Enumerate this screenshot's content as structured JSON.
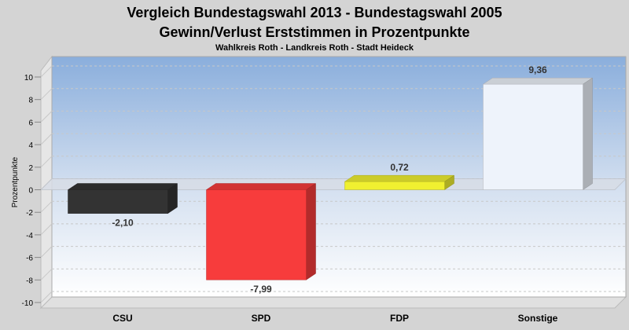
{
  "chart_data": {
    "type": "bar",
    "title": "Vergleich Bundestagswahl 2013  - Bundestagswahl 2005",
    "subtitle": "Gewinn/Verlust Erststimmen in Prozentpunkte",
    "caption": "Wahlkreis Roth - Landkreis Roth - Stadt Heideck",
    "ylabel": "Prozentpunkte",
    "xlabel": "",
    "categories": [
      "CSU",
      "SPD",
      "FDP",
      "Sonstige"
    ],
    "values": [
      -2.1,
      -7.99,
      0.72,
      9.36
    ],
    "value_labels": [
      "-2,10",
      "-7,99",
      "0,72",
      "9,36"
    ],
    "colors": [
      "#333333",
      "#f73c3c",
      "#f0f030",
      "#eef3fb"
    ],
    "ylim": [
      -10,
      10
    ],
    "yticks": [
      -10,
      -8,
      -6,
      -4,
      -2,
      0,
      2,
      4,
      6,
      8,
      10
    ],
    "grid": true,
    "legend": "none"
  }
}
